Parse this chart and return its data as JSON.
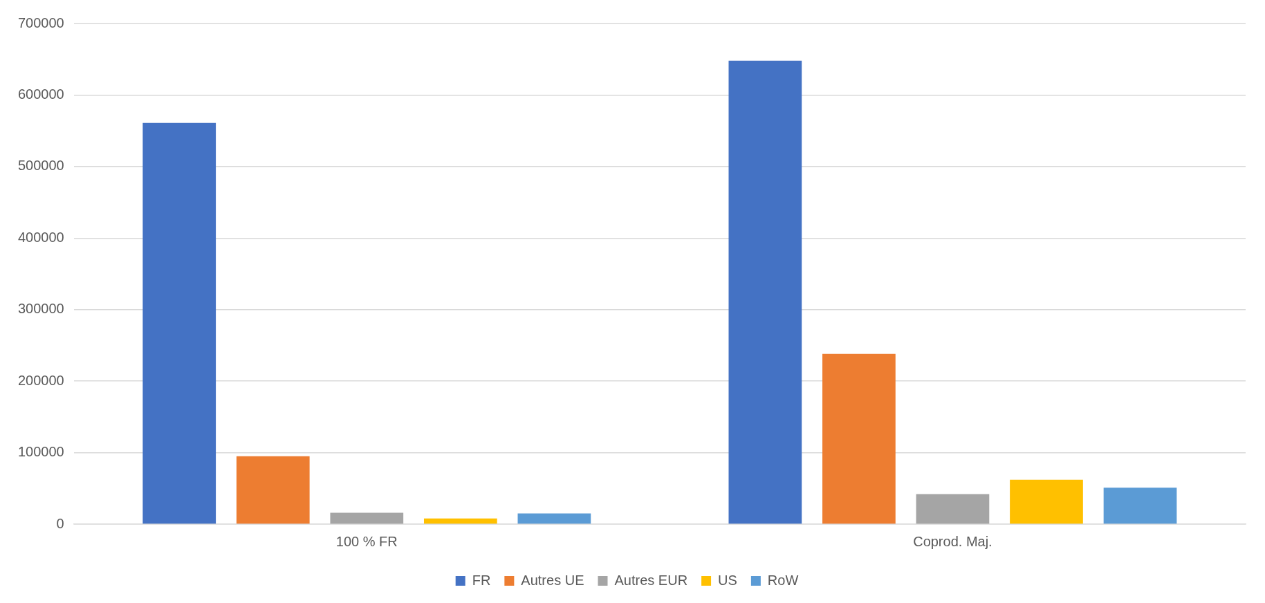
{
  "chart_data": {
    "type": "bar",
    "categories": [
      "100 % FR",
      "Coprod. Maj."
    ],
    "series": [
      {
        "name": "FR",
        "color": "#4472c4",
        "values": [
          561000,
          648000
        ]
      },
      {
        "name": "Autres UE",
        "color": "#ed7d31",
        "values": [
          95000,
          238000
        ]
      },
      {
        "name": "Autres EUR",
        "color": "#a5a5a5",
        "values": [
          16000,
          42000
        ]
      },
      {
        "name": "US",
        "color": "#ffc000",
        "values": [
          8000,
          62000
        ]
      },
      {
        "name": "RoW",
        "color": "#5b9bd5",
        "values": [
          15000,
          51000
        ]
      }
    ],
    "ylim": [
      0,
      700000
    ],
    "yticks": [
      0,
      100000,
      200000,
      300000,
      400000,
      500000,
      600000,
      700000
    ],
    "grid": "y",
    "legend": "bottom"
  }
}
